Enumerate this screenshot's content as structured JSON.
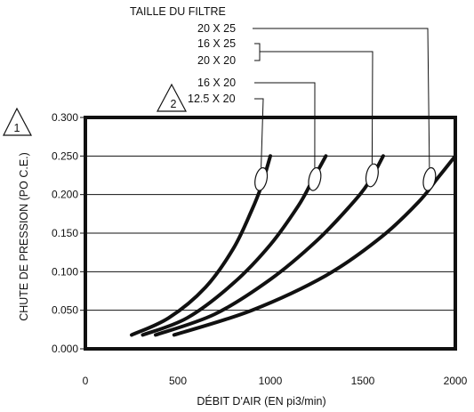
{
  "chart_data": {
    "type": "line",
    "xlabel": "DÉBIT D'AIR (EN pi3/min)",
    "ylabel": "CHUTE DE PRESSION (PO C.E.)",
    "xlim": [
      0,
      2000
    ],
    "ylim": [
      0.0,
      0.3
    ],
    "x_ticks": [
      "0",
      "500",
      "1000",
      "1500",
      "2000"
    ],
    "y_ticks": [
      "0.000",
      "0.050",
      "0.100",
      "0.150",
      "0.200",
      "0.250",
      "0.300"
    ],
    "grid": "horizontal",
    "legend_title": "TAILLE DU FILTRE",
    "annotation_markers": [
      "1",
      "2"
    ],
    "series": [
      {
        "name": "12.5 X 20",
        "marker": "2",
        "x": [
          250,
          450,
          650,
          800,
          900,
          950,
          1000
        ],
        "y": [
          0.018,
          0.04,
          0.08,
          0.13,
          0.18,
          0.21,
          0.25
        ]
      },
      {
        "name": "16 X 20",
        "x": [
          310,
          550,
          800,
          1000,
          1150,
          1220,
          1300
        ],
        "y": [
          0.018,
          0.04,
          0.085,
          0.135,
          0.185,
          0.215,
          0.25
        ]
      },
      {
        "name": "16 X 25 / 20 X 20",
        "x": [
          380,
          700,
          1000,
          1250,
          1430,
          1530,
          1610
        ],
        "y": [
          0.018,
          0.045,
          0.09,
          0.14,
          0.185,
          0.215,
          0.25
        ]
      },
      {
        "name": "20 X 25",
        "x": [
          480,
          900,
          1300,
          1600,
          1800,
          1900,
          2000
        ],
        "y": [
          0.018,
          0.05,
          0.095,
          0.145,
          0.19,
          0.22,
          0.25
        ]
      }
    ],
    "marked_points": [
      {
        "x": 950,
        "y": 0.22
      },
      {
        "x": 1240,
        "y": 0.22
      },
      {
        "x": 1550,
        "y": 0.225
      },
      {
        "x": 1860,
        "y": 0.22
      }
    ]
  }
}
